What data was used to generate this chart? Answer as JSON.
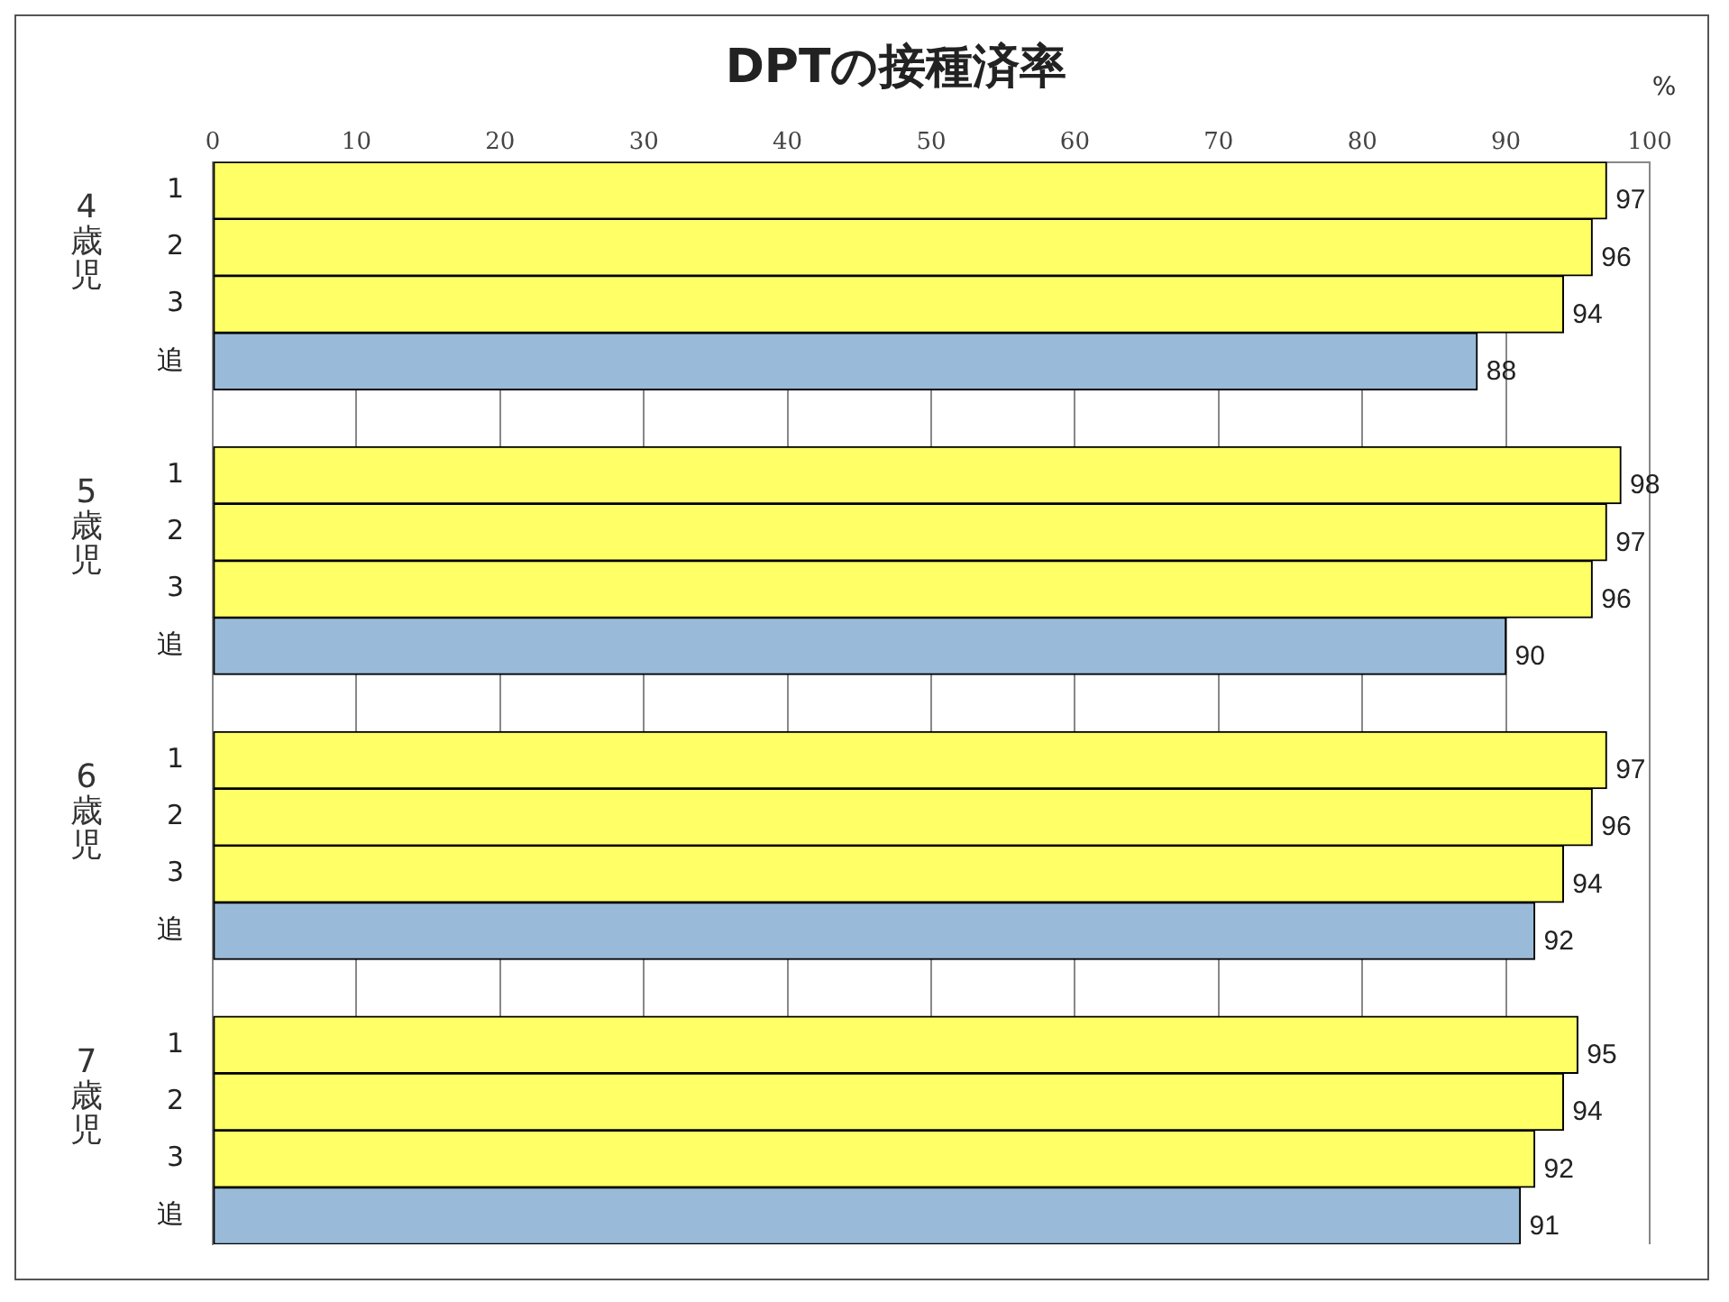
{
  "chart_data": {
    "type": "bar",
    "orientation": "horizontal",
    "title": "DPTの接種済率",
    "categories": [
      "1",
      "2",
      "3",
      "追",
      null,
      "1",
      "2",
      "3",
      "追",
      null,
      "1",
      "2",
      "3",
      "追",
      null,
      "1",
      "2",
      "3",
      "追"
    ],
    "values": [
      97,
      96,
      94,
      88,
      null,
      98,
      97,
      96,
      90,
      null,
      97,
      96,
      94,
      92,
      null,
      95,
      94,
      92,
      91
    ],
    "colors": [
      "#ffff66",
      "#ffff66",
      "#ffff66",
      "#99bbd9",
      "#ffffff",
      "#ffff66",
      "#ffff66",
      "#ffff66",
      "#99bbd9",
      "#ffffff",
      "#ffff66",
      "#ffff66",
      "#ffff66",
      "#99bbd9",
      "#ffffff",
      "#ffff66",
      "#ffff66",
      "#ffff66",
      "#99bbd9"
    ],
    "xlim": [
      0,
      100
    ],
    "xticks": [
      0,
      10,
      20,
      30,
      40,
      50,
      60,
      70,
      80,
      90,
      100
    ],
    "grid": "x",
    "legend": false,
    "data_labels": true,
    "annotations": [
      "4歳児",
      "5歳児",
      "6歳児",
      "7歳児",
      "%"
    ]
  }
}
